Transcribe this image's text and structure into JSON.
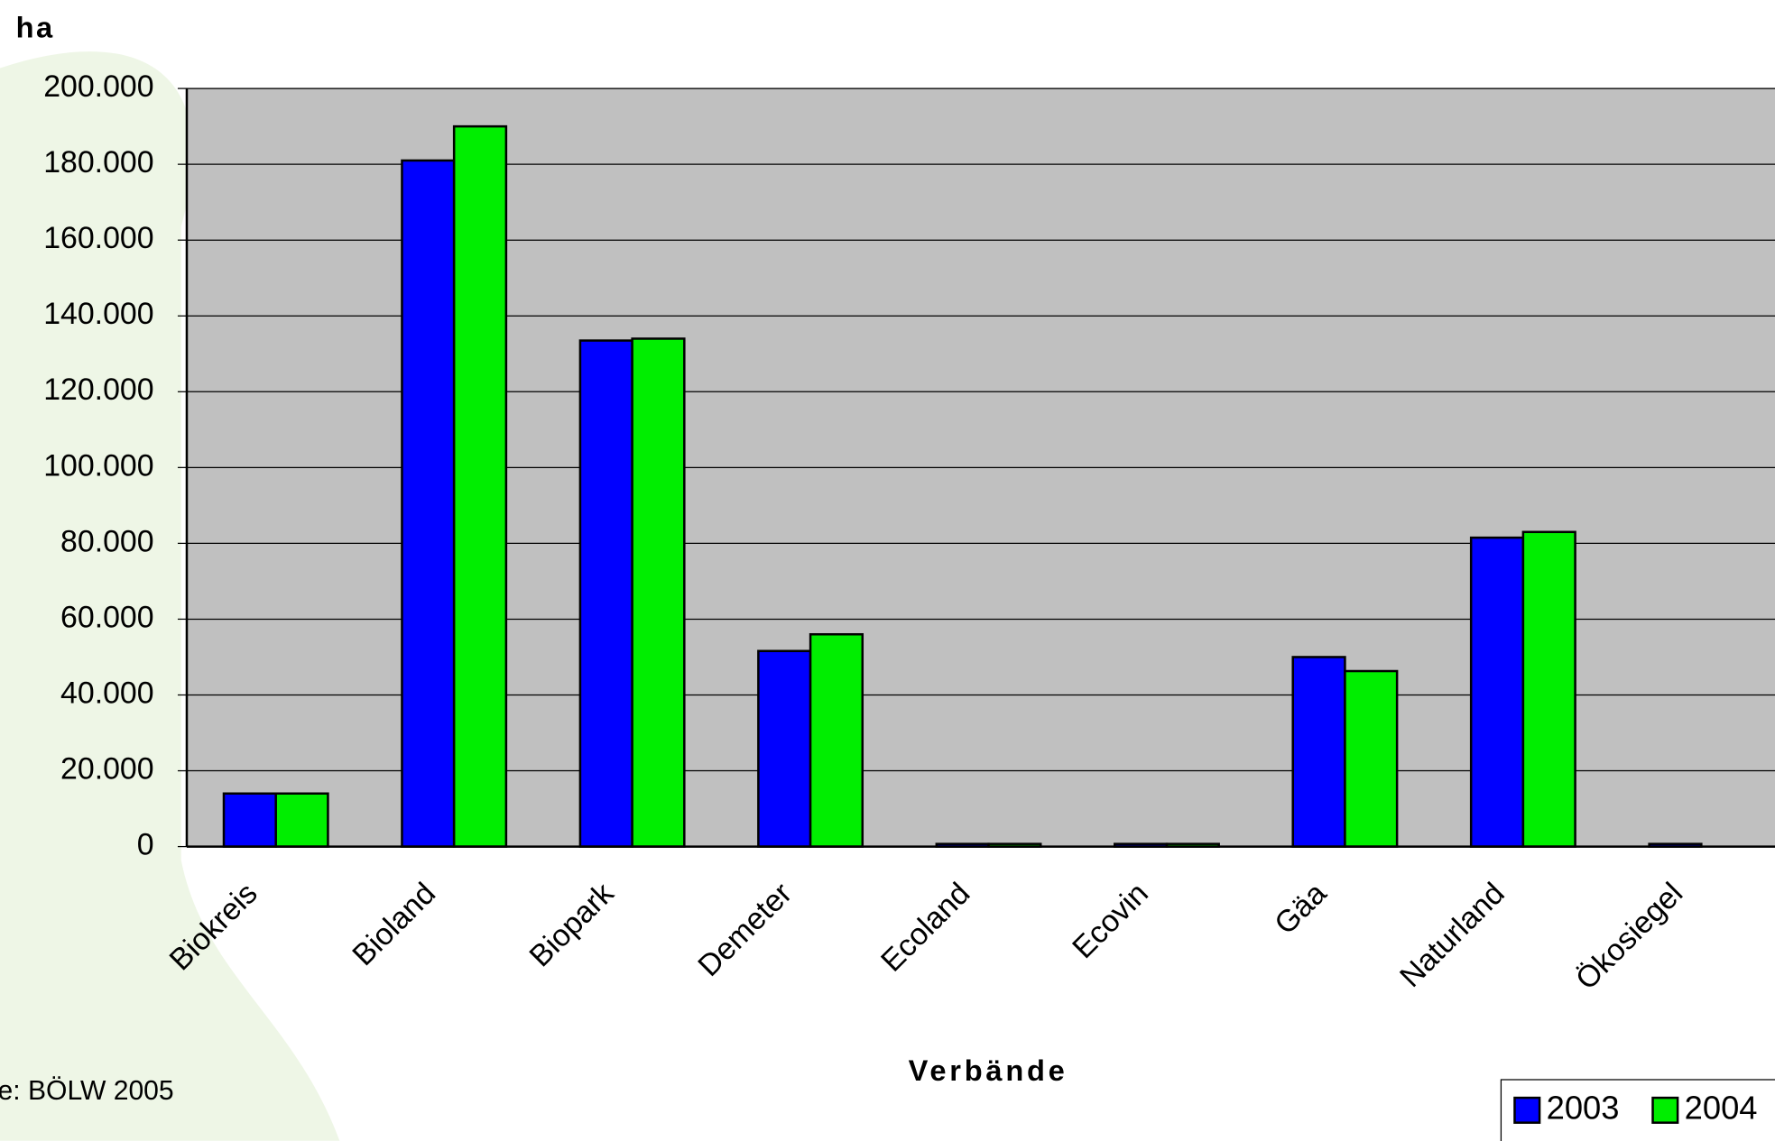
{
  "chart_data": {
    "type": "bar",
    "y_label": "ha",
    "x_label": "Verbände",
    "source": "e: BÖLW 2005",
    "categories": [
      "Biokreis",
      "Bioland",
      "Biopark",
      "Demeter",
      "Ecoland",
      "Ecovin",
      "Gäa",
      "Naturland",
      "Ökosiegel"
    ],
    "series": [
      {
        "name": "2003",
        "color": "#0000ff",
        "values": [
          14000,
          181000,
          133500,
          51600,
          700,
          700,
          50000,
          81500,
          700
        ]
      },
      {
        "name": "2004",
        "color": "#00ee00",
        "values": [
          14000,
          190000,
          134000,
          56000,
          700,
          700,
          46300,
          83000,
          null
        ]
      }
    ],
    "ylim": [
      0,
      200000
    ],
    "yticks": [
      0,
      {
        "value": 20000,
        "label": "20.000"
      },
      {
        "value": 40000,
        "label": "40.000"
      },
      {
        "value": 60000,
        "label": "60.000"
      },
      {
        "value": 80000,
        "label": "80.000"
      },
      {
        "value": 100000,
        "label": "100.000"
      },
      {
        "value": 120000,
        "label": "120.000"
      },
      {
        "value": 140000,
        "label": "140.000"
      },
      {
        "value": 160000,
        "label": "160.000"
      },
      {
        "value": 180000,
        "label": "180.000"
      },
      {
        "value": 200000,
        "label": "200.000"
      }
    ],
    "grid": true,
    "plot_background": "#c0c0c0",
    "legend": "bottom-right"
  }
}
